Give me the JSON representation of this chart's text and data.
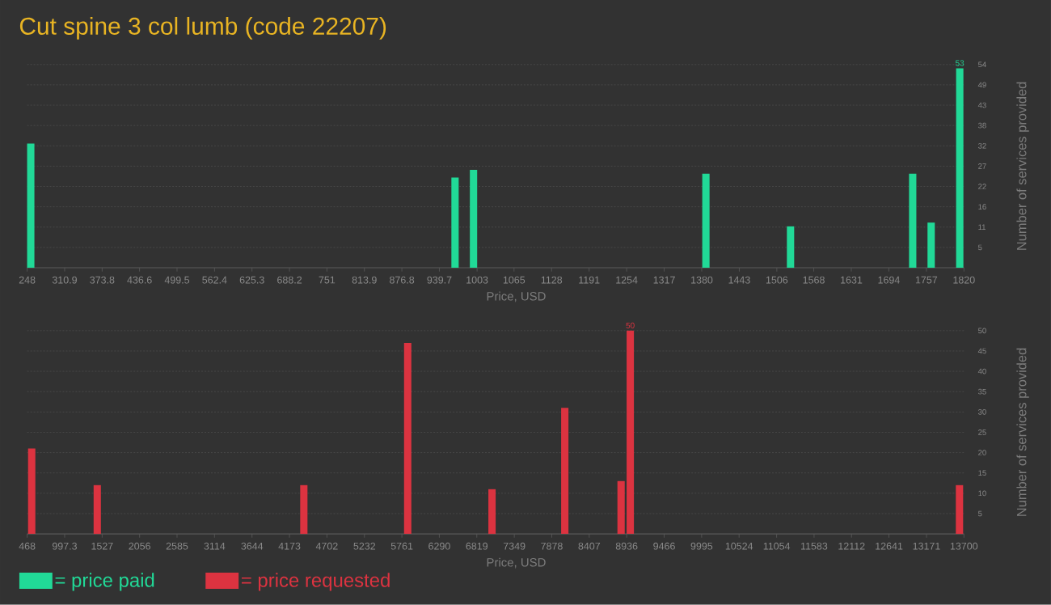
{
  "chart_data": [
    {
      "type": "bar",
      "title": "Cut spine 3 col lumb (code 22207)",
      "xlabel": "Price, USD",
      "ylabel": "Number of services provided",
      "x": [
        254,
        966,
        997,
        1387,
        1529,
        1734,
        1765,
        1813
      ],
      "series": [
        {
          "name": "= price paid",
          "color": "#21d997",
          "values": [
            33,
            24,
            26,
            25,
            11,
            25,
            12,
            53
          ],
          "value_labels": [
            null,
            null,
            null,
            null,
            null,
            null,
            null,
            "53"
          ]
        }
      ],
      "xlim": [
        248,
        1820
      ],
      "xticks": [
        248,
        310.9,
        373.8,
        436.6,
        499.5,
        562.4,
        625.3,
        688.2,
        751,
        813.9,
        876.8,
        939.7,
        1003,
        1065,
        1128,
        1191,
        1254,
        1317,
        1380,
        1443,
        1506,
        1568,
        1631,
        1694,
        1757,
        1820
      ],
      "ylim": [
        0,
        54
      ],
      "yticks": [
        {
          "value": 5.4,
          "label": "5"
        },
        {
          "value": 10.8,
          "label": "11"
        },
        {
          "value": 16.2,
          "label": "16"
        },
        {
          "value": 21.6,
          "label": "22"
        },
        27,
        {
          "value": 32.4,
          "label": "32"
        },
        {
          "value": 37.8,
          "label": "38"
        },
        {
          "value": 43.2,
          "label": "43"
        },
        {
          "value": 48.6,
          "label": "49"
        },
        54
      ],
      "grid": "y",
      "legend": "bottom left"
    },
    {
      "type": "bar",
      "xlabel": "Price, USD",
      "ylabel": "Number of services provided",
      "x": [
        532,
        1458,
        4376,
        5843,
        7034,
        8062,
        8857,
        8987,
        13637
      ],
      "series": [
        {
          "name": "= price requested",
          "color": "#dc3340",
          "values": [
            21,
            12,
            12,
            47,
            11,
            31,
            13,
            50,
            12
          ],
          "value_labels": [
            null,
            null,
            null,
            null,
            null,
            null,
            null,
            "50",
            null
          ]
        }
      ],
      "xlim": [
        468,
        13700
      ],
      "xticks": [
        468,
        997.3,
        1527,
        2056,
        2585,
        3114,
        3644,
        4173,
        4702,
        5232,
        5761,
        6290,
        6819,
        7349,
        7878,
        8407,
        8936,
        9466,
        9995,
        10524,
        11054,
        11583,
        12112,
        12641,
        13171,
        13700
      ],
      "ylim": [
        0,
        50
      ],
      "yticks": [
        5,
        10,
        15,
        20,
        25,
        30,
        35,
        40,
        45,
        50
      ],
      "grid": "y",
      "legend": "bottom left"
    }
  ]
}
